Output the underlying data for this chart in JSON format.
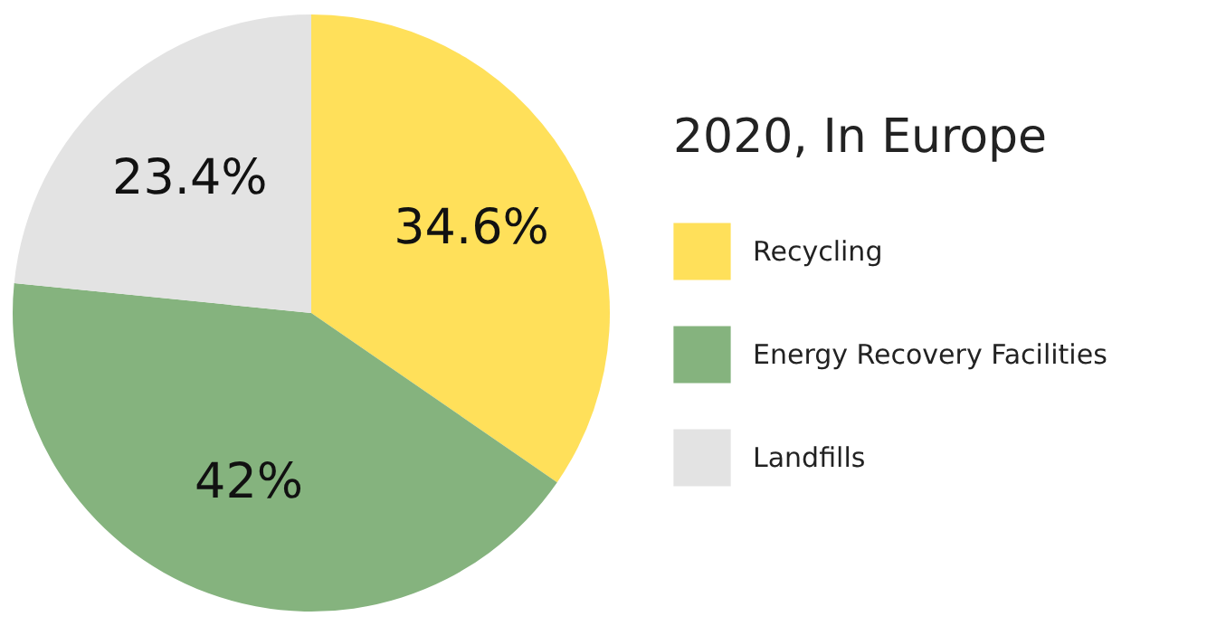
{
  "chart_data": {
    "type": "pie",
    "legend_title": "2020, In Europe",
    "categories": [
      "Recycling",
      "Energy Recovery Facilities",
      "Landfills"
    ],
    "values": [
      34.6,
      42,
      23.4
    ],
    "colors": [
      "#ffe05a",
      "#85b37e",
      "#e3e3e3"
    ],
    "value_labels": [
      "34.6%",
      "42%",
      "23.4%"
    ],
    "legend": "right"
  }
}
